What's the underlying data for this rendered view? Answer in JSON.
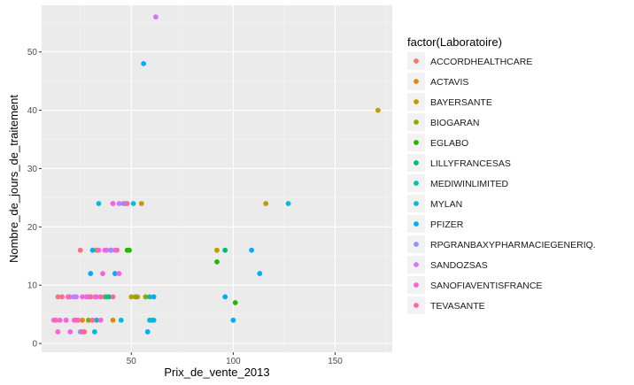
{
  "chart_data": {
    "type": "scatter",
    "xlabel": "Prix_de_vente_2013",
    "ylabel": "Nombre_de_jours_de_traitement",
    "xlim": [
      6,
      178
    ],
    "ylim": [
      -1.5,
      58
    ],
    "x_ticks": [
      50,
      100,
      150
    ],
    "y_ticks": [
      0,
      10,
      20,
      30,
      40,
      50
    ],
    "grid": true,
    "legend_position": "right",
    "legend_title": "factor(Laboratoire)",
    "series": [
      {
        "name": "ACCORDHEALTHCARE",
        "color": "#F8766D",
        "points": [
          [
            25,
            16
          ],
          [
            14,
            8
          ],
          [
            27,
            2
          ],
          [
            22,
            4
          ],
          [
            30,
            8
          ]
        ]
      },
      {
        "name": "ACTAVIS",
        "color": "#E18A00",
        "points": [
          [
            30,
            8
          ],
          [
            26,
            4
          ],
          [
            33,
            16
          ],
          [
            41,
            4
          ],
          [
            31,
            4
          ]
        ]
      },
      {
        "name": "BAYERSANTE",
        "color": "#BE9C00",
        "points": [
          [
            171,
            40
          ],
          [
            116,
            24
          ],
          [
            92,
            16
          ],
          [
            55,
            24
          ],
          [
            50,
            8
          ],
          [
            53,
            8
          ]
        ]
      },
      {
        "name": "BIOGARAN",
        "color": "#8CAB00",
        "points": [
          [
            40,
            16
          ],
          [
            47,
            24
          ],
          [
            52,
            8
          ],
          [
            29,
            4
          ],
          [
            57,
            8
          ],
          [
            37,
            8
          ]
        ]
      },
      {
        "name": "EGLABO",
        "color": "#24B700",
        "points": [
          [
            49,
            16
          ],
          [
            48,
            16
          ],
          [
            92,
            14
          ],
          [
            101,
            7
          ]
        ]
      },
      {
        "name": "LILLYFRANCESAS",
        "color": "#00BE70",
        "points": [
          [
            96,
            16
          ],
          [
            39,
            8
          ]
        ]
      },
      {
        "name": "MEDIWINLIMITED",
        "color": "#00C1AB",
        "points": [
          [
            38,
            8
          ],
          [
            59,
            8
          ],
          [
            33,
            4
          ]
        ]
      },
      {
        "name": "MYLAN",
        "color": "#00BBDA",
        "points": [
          [
            34,
            24
          ],
          [
            51,
            24
          ],
          [
            127,
            24
          ],
          [
            32,
            2
          ],
          [
            60,
            4
          ],
          [
            61,
            4
          ],
          [
            45,
            4
          ],
          [
            59,
            4
          ]
        ]
      },
      {
        "name": "PFIZER",
        "color": "#00ACFC",
        "points": [
          [
            56,
            48
          ],
          [
            109,
            16
          ],
          [
            113,
            12
          ],
          [
            96,
            8
          ],
          [
            100,
            4
          ],
          [
            58,
            2
          ],
          [
            61,
            8
          ],
          [
            31,
            16
          ],
          [
            30,
            12
          ],
          [
            42,
            12
          ]
        ]
      },
      {
        "name": "RPGRANBAXYPHARMACIEGENERIQ.",
        "color": "#8B93FF",
        "points": [
          [
            22,
            8
          ],
          [
            25,
            2
          ],
          [
            40,
            16
          ],
          [
            46,
            24
          ],
          [
            18,
            4
          ]
        ]
      },
      {
        "name": "SANDOZSAS",
        "color": "#D575FE",
        "points": [
          [
            62,
            56
          ],
          [
            41,
            24
          ],
          [
            44,
            24
          ],
          [
            38,
            16
          ],
          [
            23,
            8
          ],
          [
            20,
            8
          ],
          [
            42,
            16
          ],
          [
            32,
            8
          ]
        ]
      },
      {
        "name": "SANOFIAVENTISFRANCE",
        "color": "#F962DD",
        "points": [
          [
            41,
            24
          ],
          [
            36,
            12
          ],
          [
            33,
            8
          ],
          [
            14,
            2
          ],
          [
            18,
            4
          ],
          [
            15,
            4
          ],
          [
            26,
            8
          ],
          [
            37,
            16
          ],
          [
            29,
            8
          ],
          [
            20,
            2
          ],
          [
            12,
            4
          ],
          [
            24,
            4
          ],
          [
            35,
            4
          ],
          [
            44,
            12
          ],
          [
            34,
            16
          ],
          [
            28,
            8
          ],
          [
            22,
            4
          ]
        ]
      },
      {
        "name": "TEVASANTE",
        "color": "#FF65AC",
        "points": [
          [
            13,
            4
          ],
          [
            16,
            8
          ],
          [
            23,
            4
          ],
          [
            43,
            16
          ],
          [
            48,
            24
          ],
          [
            35,
            8
          ],
          [
            26,
            2
          ],
          [
            19,
            8
          ],
          [
            41,
            8
          ],
          [
            31,
            4
          ]
        ]
      }
    ]
  }
}
